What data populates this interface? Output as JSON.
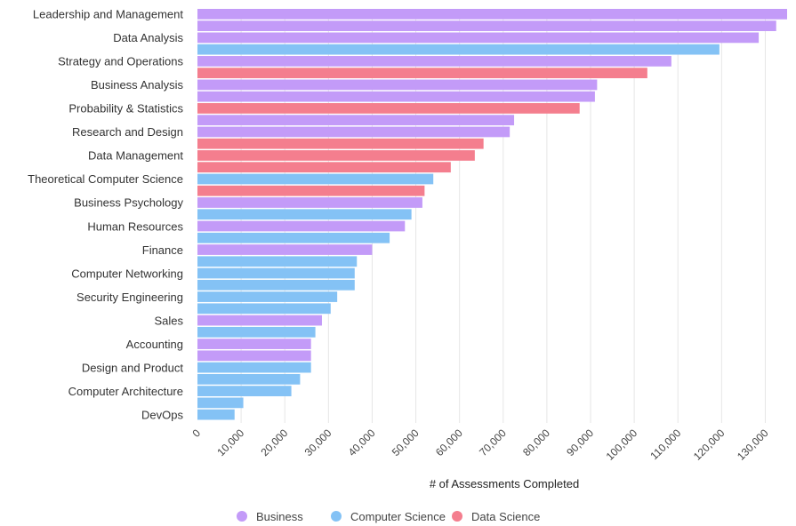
{
  "chart_data": {
    "type": "bar",
    "orientation": "horizontal",
    "xlabel": "# of Assessments Completed",
    "ylabel": "",
    "xlim": [
      0,
      135000
    ],
    "x_ticks": [
      0,
      10000,
      20000,
      30000,
      40000,
      50000,
      60000,
      70000,
      80000,
      90000,
      100000,
      110000,
      120000,
      130000
    ],
    "x_tick_labels": [
      "0",
      "10,000",
      "20,000",
      "30,000",
      "40,000",
      "50,000",
      "60,000",
      "70,000",
      "80,000",
      "90,000",
      "100,000",
      "110,000",
      "120,000",
      "130,000"
    ],
    "grid": "vertical",
    "legend_position": "bottom",
    "colors": {
      "Business": "#c39bf8",
      "Computer Science": "#84c2f5",
      "Data Science": "#f47e8e"
    },
    "legend": [
      "Business",
      "Computer Science",
      "Data Science"
    ],
    "category_labels": [
      "Leadership and Management",
      "Data Analysis",
      "Strategy and Operations",
      "Business Analysis",
      "Probability & Statistics",
      "Research and Design",
      "Data Management",
      "Theoretical Computer Science",
      "Business Psychology",
      "Human Resources",
      "Finance",
      "Computer Networking",
      "Security Engineering",
      "Sales",
      "Accounting",
      "Design and Product",
      "Computer Architecture",
      "DevOps"
    ],
    "bars": [
      {
        "series": "Business",
        "value": 135000
      },
      {
        "series": "Business",
        "value": 132500
      },
      {
        "series": "Business",
        "value": 128500
      },
      {
        "series": "Computer Science",
        "value": 119500
      },
      {
        "series": "Business",
        "value": 108500
      },
      {
        "series": "Data Science",
        "value": 103000
      },
      {
        "series": "Business",
        "value": 91500
      },
      {
        "series": "Business",
        "value": 91000
      },
      {
        "series": "Data Science",
        "value": 87500
      },
      {
        "series": "Business",
        "value": 72500
      },
      {
        "series": "Business",
        "value": 71500
      },
      {
        "series": "Data Science",
        "value": 65500
      },
      {
        "series": "Data Science",
        "value": 63500
      },
      {
        "series": "Data Science",
        "value": 58000
      },
      {
        "series": "Computer Science",
        "value": 54000
      },
      {
        "series": "Data Science",
        "value": 52000
      },
      {
        "series": "Business",
        "value": 51500
      },
      {
        "series": "Computer Science",
        "value": 49000
      },
      {
        "series": "Business",
        "value": 47500
      },
      {
        "series": "Computer Science",
        "value": 44000
      },
      {
        "series": "Business",
        "value": 40000
      },
      {
        "series": "Computer Science",
        "value": 36500
      },
      {
        "series": "Computer Science",
        "value": 36000
      },
      {
        "series": "Computer Science",
        "value": 36000
      },
      {
        "series": "Computer Science",
        "value": 32000
      },
      {
        "series": "Computer Science",
        "value": 30500
      },
      {
        "series": "Business",
        "value": 28500
      },
      {
        "series": "Computer Science",
        "value": 27000
      },
      {
        "series": "Business",
        "value": 26000
      },
      {
        "series": "Business",
        "value": 26000
      },
      {
        "series": "Computer Science",
        "value": 26000
      },
      {
        "series": "Computer Science",
        "value": 23500
      },
      {
        "series": "Computer Science",
        "value": 21500
      },
      {
        "series": "Computer Science",
        "value": 10500
      },
      {
        "series": "Computer Science",
        "value": 8500
      }
    ]
  }
}
